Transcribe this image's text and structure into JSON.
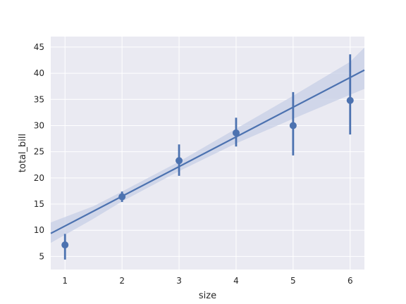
{
  "chart_data": {
    "type": "scatter",
    "xlabel": "size",
    "ylabel": "total_bill",
    "xlim": [
      0.75,
      6.25
    ],
    "ylim": [
      2.5,
      47.0
    ],
    "x_ticks": [
      1,
      2,
      3,
      4,
      5,
      6
    ],
    "y_ticks": [
      5,
      10,
      15,
      20,
      25,
      30,
      35,
      40,
      45
    ],
    "grid": true,
    "colors": {
      "background": "#eaeaf2",
      "grid": "#ffffff",
      "series": "#4c72b0",
      "band": "#c5cde6"
    },
    "points": [
      {
        "x": 1,
        "y": 7.2,
        "ci": [
          4.4,
          9.3
        ]
      },
      {
        "x": 2,
        "y": 16.4,
        "ci": [
          15.4,
          17.4
        ]
      },
      {
        "x": 3,
        "y": 23.3,
        "ci": [
          20.4,
          26.4
        ]
      },
      {
        "x": 4,
        "y": 28.6,
        "ci": [
          26.0,
          31.5
        ]
      },
      {
        "x": 5,
        "y": 30.0,
        "ci": [
          24.3,
          36.4
        ]
      },
      {
        "x": 6,
        "y": 34.8,
        "ci": [
          28.3,
          43.6
        ]
      }
    ],
    "regression": {
      "x": [
        0.75,
        6.25
      ],
      "y": [
        9.4,
        40.6
      ]
    },
    "confidence_band": {
      "x": [
        0.75,
        1.5,
        2.0,
        3.0,
        4.0,
        5.0,
        6.0,
        6.25
      ],
      "lower": [
        7.6,
        12.2,
        15.5,
        21.3,
        26.6,
        31.3,
        35.9,
        37.0
      ],
      "upper": [
        11.5,
        14.6,
        17.4,
        23.1,
        29.4,
        35.7,
        42.2,
        44.9
      ]
    }
  }
}
